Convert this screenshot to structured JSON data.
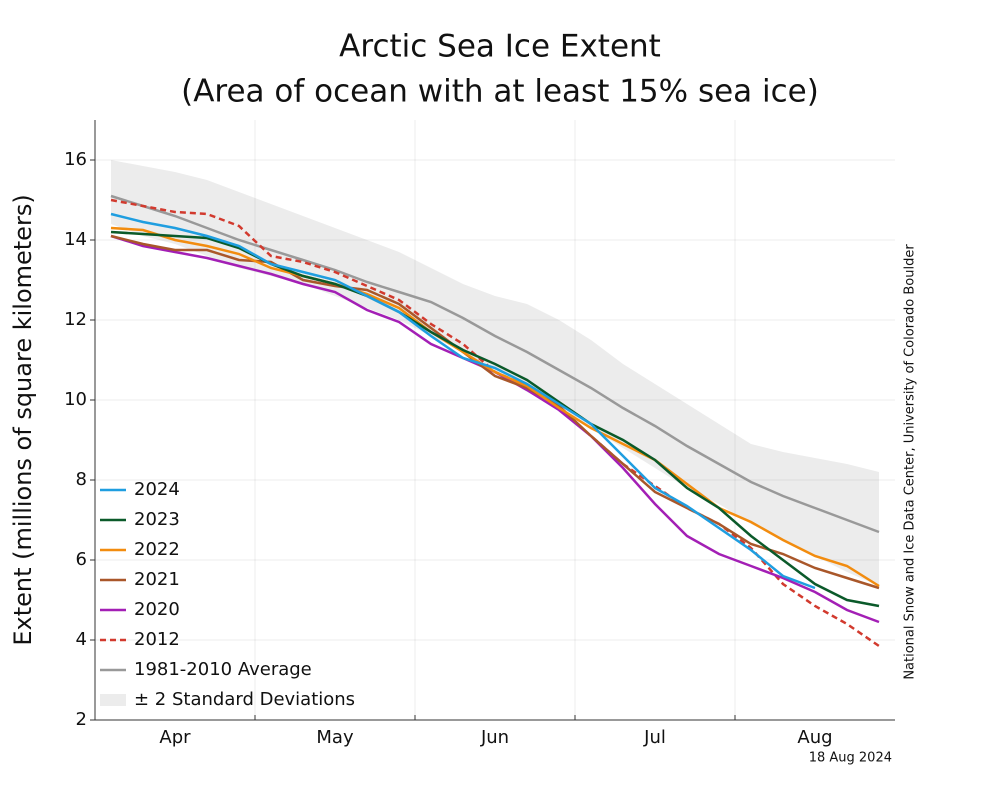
{
  "chart_data": {
    "type": "line",
    "title": "Arctic Sea Ice Extent",
    "subtitle": "(Area of ocean with at least 15% sea ice)",
    "y_label": "Extent (millions of square kilometers)",
    "source": "National Snow and Ice Data Center, University of Colorado Boulder",
    "date": "18 Aug 2024",
    "categories": [
      null,
      null,
      "Apr",
      null,
      null,
      null,
      null,
      "May",
      null,
      null,
      null,
      null,
      "Jun",
      null,
      null,
      null,
      null,
      "Jul",
      null,
      null,
      null,
      null,
      "Aug",
      null,
      null
    ],
    "ylim": [
      2,
      17
    ],
    "yticks": [
      2,
      4,
      6,
      8,
      10,
      12,
      14,
      16
    ],
    "grid": true,
    "legend": "lower-left",
    "band": {
      "name": "± 2 Standard Deviations",
      "color": "#ececec",
      "upper": [
        16.0,
        15.85,
        15.7,
        15.5,
        15.2,
        14.9,
        14.6,
        14.3,
        14.0,
        13.7,
        13.3,
        12.9,
        12.6,
        12.4,
        12.0,
        11.5,
        10.9,
        10.4,
        9.9,
        9.4,
        8.9,
        8.7,
        8.55,
        8.4,
        8.2
      ],
      "lower": [
        14.4,
        14.1,
        13.9,
        13.6,
        13.3,
        13.1,
        12.9,
        12.6,
        12.3,
        12.0,
        11.6,
        11.2,
        10.7,
        10.2,
        9.8,
        9.3,
        8.8,
        8.3,
        7.8,
        7.4,
        6.9,
        6.5,
        6.1,
        5.7,
        5.35
      ]
    },
    "series": [
      {
        "name": "2024",
        "color": "#1f9ee0",
        "values": [
          14.65,
          14.45,
          14.3,
          14.1,
          13.85,
          13.4,
          13.2,
          13.0,
          12.6,
          12.2,
          11.6,
          11.05,
          10.8,
          10.4,
          9.9,
          9.4,
          8.6,
          7.8,
          7.35,
          6.8,
          6.25,
          5.6,
          5.3,
          null,
          null
        ]
      },
      {
        "name": "2023",
        "color": "#0b5a2a",
        "values": [
          14.2,
          14.15,
          14.1,
          14.05,
          13.8,
          13.4,
          13.1,
          12.9,
          12.6,
          12.2,
          11.7,
          11.25,
          10.9,
          10.5,
          9.95,
          9.4,
          9.0,
          8.5,
          7.8,
          7.3,
          6.6,
          6.0,
          5.4,
          5.0,
          4.85
        ]
      },
      {
        "name": "2022",
        "color": "#f28c0f",
        "values": [
          14.3,
          14.25,
          14.0,
          13.85,
          13.65,
          13.3,
          13.1,
          12.9,
          12.65,
          12.3,
          11.7,
          11.2,
          10.7,
          10.35,
          9.8,
          9.3,
          8.9,
          8.5,
          7.9,
          7.3,
          6.95,
          6.5,
          6.1,
          5.85,
          5.35
        ]
      },
      {
        "name": "2021",
        "color": "#a9572a",
        "values": [
          14.1,
          13.9,
          13.75,
          13.75,
          13.5,
          13.45,
          13.0,
          12.85,
          12.75,
          12.4,
          11.8,
          11.2,
          10.6,
          10.3,
          9.85,
          9.1,
          8.4,
          7.7,
          7.3,
          6.9,
          6.4,
          6.15,
          5.8,
          5.55,
          5.3
        ]
      },
      {
        "name": "2020",
        "color": "#a31fb5",
        "values": [
          14.1,
          13.85,
          13.7,
          13.55,
          13.35,
          13.15,
          12.9,
          12.7,
          12.25,
          11.95,
          11.4,
          11.05,
          10.7,
          10.25,
          9.75,
          9.1,
          8.3,
          7.4,
          6.6,
          6.15,
          5.85,
          5.55,
          5.2,
          4.75,
          4.45
        ]
      },
      {
        "name": "2012",
        "color": "#d23a2e",
        "dash": true,
        "values": [
          15.0,
          14.85,
          14.7,
          14.65,
          14.35,
          13.6,
          13.45,
          13.2,
          12.85,
          12.5,
          11.9,
          11.4,
          10.7,
          10.35,
          9.8,
          9.1,
          8.4,
          7.85,
          7.3,
          6.9,
          6.3,
          5.4,
          4.85,
          4.4,
          3.85
        ]
      },
      {
        "name": "1981-2010 Average",
        "color": "#999999",
        "values": [
          15.1,
          14.85,
          14.6,
          14.3,
          14.0,
          13.75,
          13.5,
          13.25,
          12.95,
          12.7,
          12.45,
          12.05,
          11.6,
          11.2,
          10.75,
          10.3,
          9.8,
          9.35,
          8.85,
          8.4,
          7.95,
          7.6,
          7.3,
          7.0,
          6.7
        ]
      }
    ]
  }
}
